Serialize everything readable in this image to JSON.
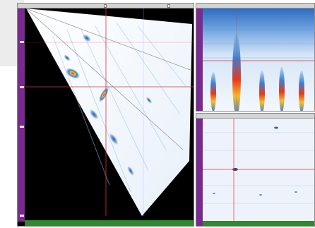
{
  "sector_panel": {
    "title": "",
    "colors": {
      "ruler": "#7a2a8c",
      "cursor": "#e0303c",
      "bottom_ruler": "#2e8a2e",
      "image_bg": "#000000"
    }
  },
  "bscan_panel": {
    "title": ""
  },
  "cscan_panel": {
    "title": ""
  },
  "colors": {
    "accent_red": "#e0303c",
    "palette_low": "#ffffff",
    "palette_mid": "#3a7fd0",
    "palette_high": "#e83a1c"
  },
  "icons": [
    "ruler-scale",
    "cursor-crosshair"
  ]
}
